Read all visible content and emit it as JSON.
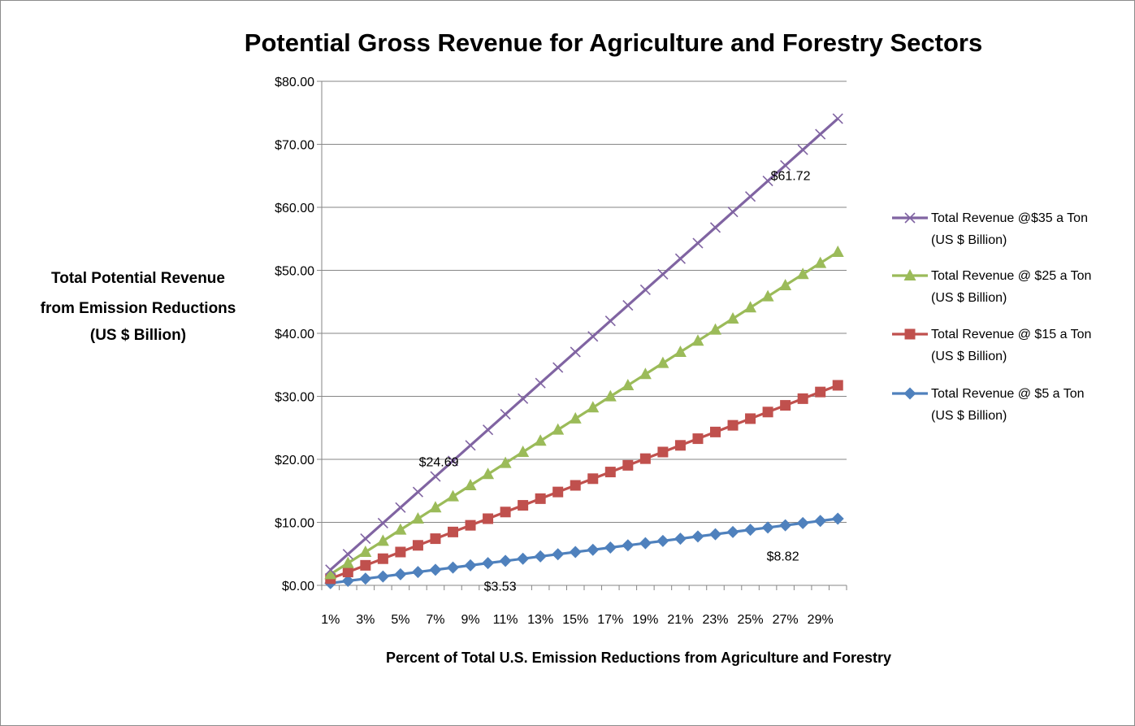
{
  "chart_data": {
    "type": "line",
    "title": "Potential Gross Revenue for Agriculture and Forestry Sectors",
    "xlabel": "Percent of  Total U.S. Emission Reductions from Agriculture and Forestry",
    "ylabel_lines": [
      "Total Potential Revenue",
      "from Emission Reductions",
      "(US $ Billion)"
    ],
    "ylim": [
      0,
      80
    ],
    "yticks": [
      "$0.00",
      "$10.00",
      "$20.00",
      "$30.00",
      "$40.00",
      "$50.00",
      "$60.00",
      "$70.00",
      "$80.00"
    ],
    "x": [
      1,
      2,
      3,
      4,
      5,
      6,
      7,
      8,
      9,
      10,
      11,
      12,
      13,
      14,
      15,
      16,
      17,
      18,
      19,
      20,
      21,
      22,
      23,
      24,
      25,
      26,
      27,
      28,
      29,
      30
    ],
    "xtick_labels": [
      "1%",
      "3%",
      "5%",
      "7%",
      "9%",
      "11%",
      "13%",
      "15%",
      "17%",
      "19%",
      "21%",
      "23%",
      "25%",
      "27%",
      "29%"
    ],
    "grid": "horizontal",
    "legend_position": "right",
    "series": [
      {
        "name_lines": [
          "Total Revenue @$35 a Ton",
          "(US $ Billion)"
        ],
        "color": "#8064a2",
        "marker": "x",
        "values": [
          2.47,
          4.94,
          7.41,
          9.88,
          12.35,
          14.81,
          17.28,
          19.75,
          22.22,
          24.69,
          27.16,
          29.63,
          32.1,
          34.57,
          37.04,
          39.51,
          41.98,
          44.44,
          46.91,
          49.38,
          51.85,
          54.32,
          56.79,
          59.26,
          61.72,
          64.19,
          66.66,
          69.13,
          71.6,
          74.07
        ]
      },
      {
        "name_lines": [
          "Total Revenue @ $25 a Ton",
          "(US $ Billion)"
        ],
        "color": "#9bbb59",
        "marker": "triangle",
        "values": [
          1.76,
          3.53,
          5.29,
          7.05,
          8.82,
          10.58,
          12.35,
          14.11,
          15.87,
          17.64,
          19.4,
          21.16,
          22.93,
          24.69,
          26.46,
          28.22,
          29.98,
          31.75,
          33.51,
          35.27,
          37.04,
          38.8,
          40.57,
          42.33,
          44.09,
          45.86,
          47.62,
          49.38,
          51.15,
          52.91
        ]
      },
      {
        "name_lines": [
          "Total Revenue @ $15 a Ton",
          "(US $ Billion)"
        ],
        "color": "#c0504d",
        "marker": "square",
        "values": [
          1.06,
          2.12,
          3.18,
          4.23,
          5.29,
          6.35,
          7.41,
          8.47,
          9.53,
          10.58,
          11.64,
          12.7,
          13.76,
          14.82,
          15.87,
          16.93,
          17.99,
          19.05,
          20.11,
          21.16,
          22.22,
          23.28,
          24.34,
          25.4,
          26.46,
          27.51,
          28.57,
          29.63,
          30.69,
          31.75
        ]
      },
      {
        "name_lines": [
          "Total Revenue @ $5 a Ton",
          "(US $ Billion)"
        ],
        "color": "#4f81bd",
        "marker": "diamond",
        "values": [
          0.35,
          0.71,
          1.06,
          1.41,
          1.76,
          2.12,
          2.47,
          2.82,
          3.18,
          3.53,
          3.88,
          4.23,
          4.59,
          4.94,
          5.29,
          5.64,
          6.0,
          6.35,
          6.7,
          7.05,
          7.41,
          7.76,
          8.11,
          8.47,
          8.82,
          9.17,
          9.53,
          9.88,
          10.23,
          10.58
        ]
      }
    ],
    "annotations": [
      {
        "text": "$24.69",
        "series": 0,
        "x": 10
      },
      {
        "text": "$61.72",
        "series": 0,
        "x": 25
      },
      {
        "text": "$3.53",
        "series": 3,
        "x": 10
      },
      {
        "text": "$8.82",
        "series": 3,
        "x": 25
      }
    ]
  }
}
